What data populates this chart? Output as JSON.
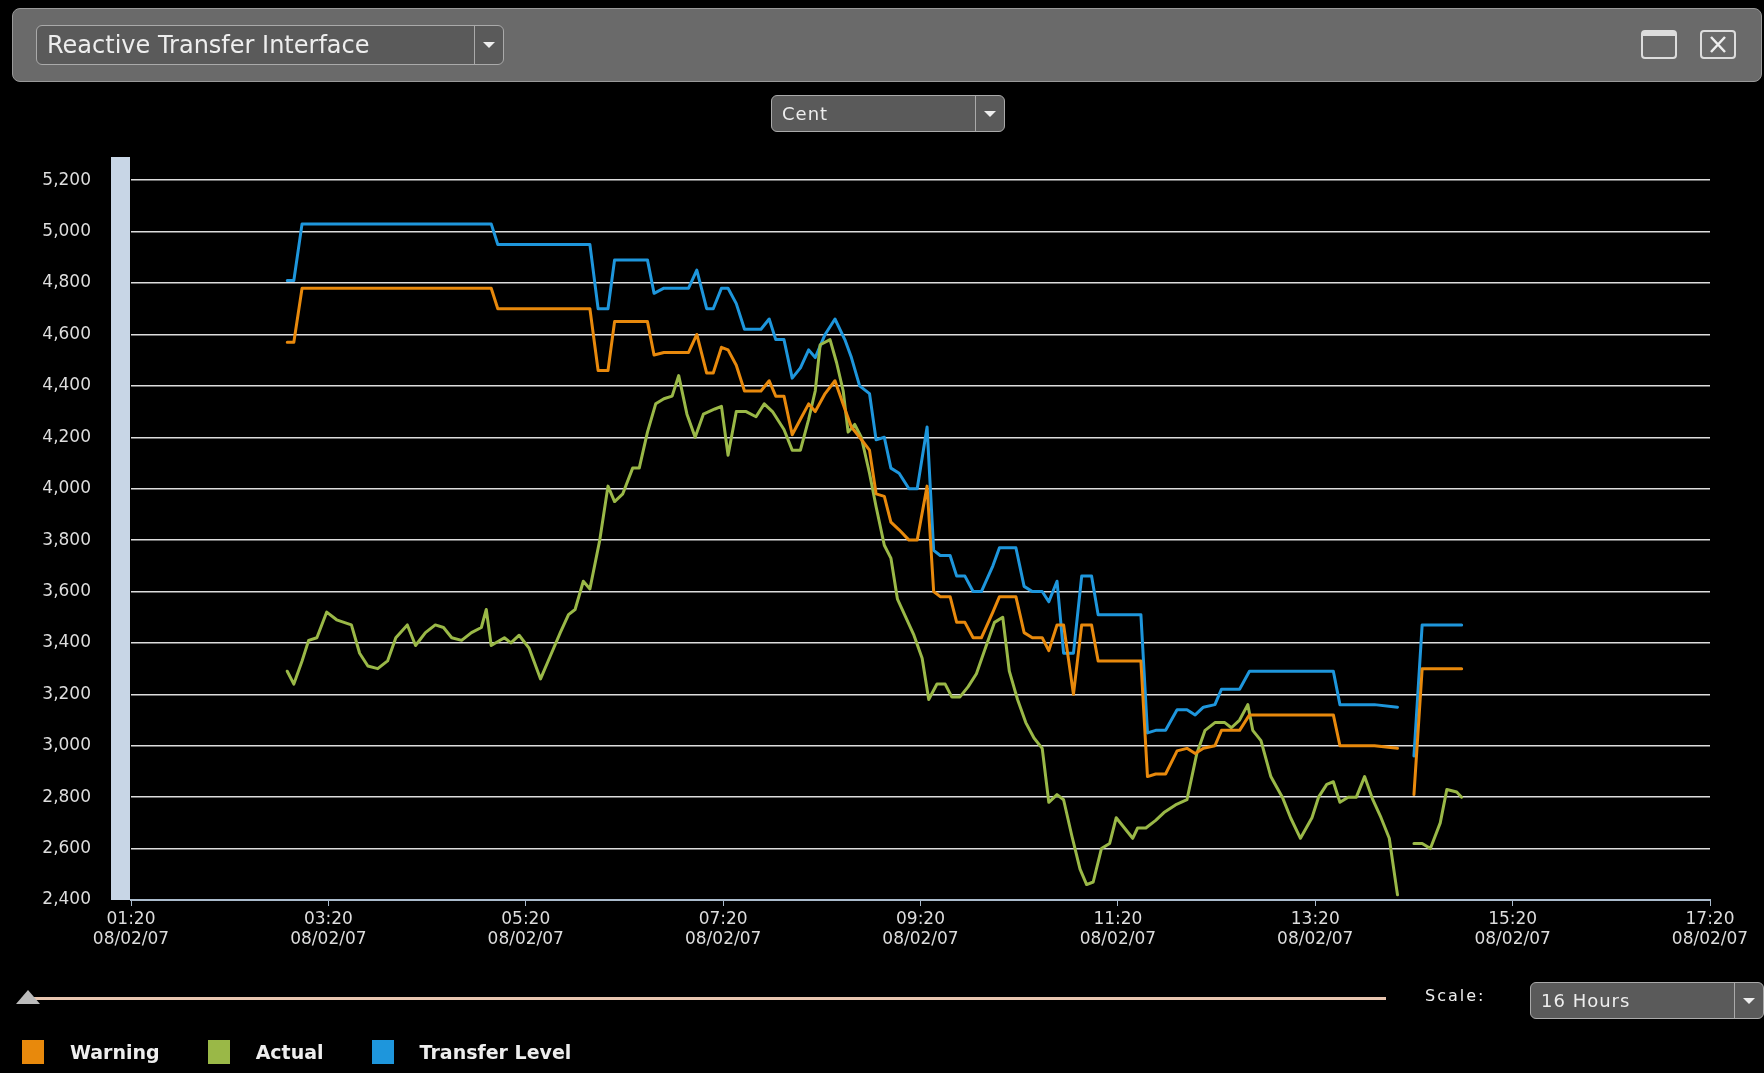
{
  "chart_data": {
    "type": "line",
    "title": "Reactive Transfer Interface",
    "annotations": [
      "Cent",
      "Scale:",
      "16 Hours"
    ],
    "xlim": [
      "--08-02T01:20",
      "--08-02T17:20"
    ],
    "xticks": [
      {
        "value": "--08-02T01:20",
        "label": "01:20 08/02/07"
      },
      {
        "value": "--08-02T03:20",
        "label": "03:20 08/02/07"
      },
      {
        "value": "--08-02T05:20",
        "label": "05:20 08/02/07"
      },
      {
        "value": "--08-02T07:20",
        "label": "07:20 08/02/07"
      },
      {
        "value": "--08-02T09:20",
        "label": "09:20 08/02/07"
      },
      {
        "value": "--08-02T11:20",
        "label": "11:20 08/02/07"
      },
      {
        "value": "--08-02T13:20",
        "label": "13:20 08/02/07"
      },
      {
        "value": "--08-02T15:20",
        "label": "15:20 08/02/07"
      },
      {
        "value": "--08-02T17:20",
        "label": "17:20 08/02/07"
      }
    ],
    "ylim": [
      2400,
      5200
    ],
    "yticks": [
      {
        "value": 2400,
        "label": "2,400"
      },
      {
        "value": 2600,
        "label": "2,600"
      },
      {
        "value": 2800,
        "label": "2,800"
      },
      {
        "value": 3000,
        "label": "3,000"
      },
      {
        "value": 3200,
        "label": "3,200"
      },
      {
        "value": 3400,
        "label": "3,400"
      },
      {
        "value": 3600,
        "label": "3,600"
      },
      {
        "value": 3800,
        "label": "3,800"
      },
      {
        "value": 4000,
        "label": "4,000"
      },
      {
        "value": 4200,
        "label": "4,200"
      },
      {
        "value": 4400,
        "label": "4,400"
      },
      {
        "value": 4600,
        "label": "4,600"
      },
      {
        "value": 4800,
        "label": "4,800"
      },
      {
        "value": 5000,
        "label": "5,000"
      },
      {
        "value": 5200,
        "label": "5,200"
      }
    ],
    "grid": "y",
    "legend": "bottom left",
    "marker": "none",
    "line_style": "solid",
    "x": [
      "--08-02T02:55",
      "--08-02T02:59",
      "--08-02T03:04",
      "--08-02T04:59",
      "--08-02T05:03",
      "--08-02T05:59",
      "--08-02T06:04",
      "--08-02T06:10",
      "--08-02T06:14",
      "--08-02T06:34",
      "--08-02T06:38",
      "--08-02T06:44",
      "--08-02T06:59",
      "--08-02T07:04",
      "--08-02T07:10",
      "--08-02T07:14",
      "--08-02T07:19",
      "--08-02T07:23",
      "--08-02T07:28",
      "--08-02T07:33",
      "--08-02T07:43",
      "--08-02T07:48",
      "--08-02T07:52",
      "--08-02T07:57",
      "--08-02T08:02",
      "--08-02T08:07",
      "--08-02T08:12",
      "--08-02T08:16",
      "--08-02T08:22",
      "--08-02T08:28",
      "--08-02T08:34",
      "--08-02T08:38",
      "--08-02T08:43",
      "--08-02T08:49",
      "--08-02T08:53",
      "--08-02T08:58",
      "--08-02T09:02",
      "--08-02T09:07",
      "--08-02T09:13",
      "--08-02T09:18",
      "--08-02T09:24",
      "--08-02T09:28",
      "--08-02T09:32",
      "--08-02T09:38",
      "--08-02T09:42",
      "--08-02T09:47",
      "--08-02T09:52",
      "--08-02T09:57",
      "--08-02T10:04",
      "--08-02T10:08",
      "--08-02T10:18",
      "--08-02T10:23",
      "--08-02T10:28",
      "--08-02T10:34",
      "--08-02T10:38",
      "--08-02T10:43",
      "--08-02T10:47",
      "--08-02T10:53",
      "--08-02T10:58",
      "--08-02T11:04",
      "--08-02T11:08",
      "--08-02T11:34",
      "--08-02T11:38",
      "--08-02T11:43",
      "--08-02T11:49",
      "--08-02T11:56",
      "--08-02T12:02",
      "--08-02T12:07",
      "--08-02T12:12",
      "--08-02T12:19",
      "--08-02T12:23",
      "--08-02T12:34",
      "--08-02T12:40",
      "--08-02T13:31",
      "--08-02T13:35",
      "--08-02T13:56",
      "--08-02T14:10",
      "--08-02T14:15",
      "--08-02T14:20",
      "--08-02T14:25",
      "--08-02T14:49"
    ],
    "series": [
      {
        "name": "Warning",
        "color": "#e8890c",
        "values": [
          4570,
          4570,
          4780,
          4780,
          4700,
          4700,
          4460,
          4460,
          4650,
          4650,
          4520,
          4530,
          4530,
          4600,
          4450,
          4450,
          4550,
          4540,
          4480,
          4380,
          4380,
          4420,
          4360,
          4360,
          4210,
          4270,
          4330,
          4300,
          4370,
          4420,
          4310,
          4240,
          4200,
          4150,
          3980,
          3970,
          3870,
          3840,
          3800,
          3800,
          4010,
          3600,
          3580,
          3580,
          3480,
          3480,
          3420,
          3420,
          3520,
          3580,
          3580,
          3440,
          3420,
          3420,
          3370,
          3470,
          3470,
          3200,
          3470,
          3470,
          3330,
          3330,
          2880,
          2890,
          2890,
          2980,
          2990,
          2970,
          2990,
          3000,
          3060,
          3060,
          3120,
          3120,
          3000,
          3000,
          2990,
          null,
          2810,
          3300,
          3300
        ]
      },
      {
        "name": "Actual",
        "color": "#9ab847",
        "x": [
          "--08-02T02:55",
          "--08-02T02:59",
          "--08-02T03:04",
          "--08-02T03:08",
          "--08-02T03:13",
          "--08-02T03:19",
          "--08-02T03:25",
          "--08-02T03:34",
          "--08-02T03:39",
          "--08-02T03:44",
          "--08-02T03:50",
          "--08-02T03:56",
          "--08-02T04:01",
          "--08-02T04:08",
          "--08-02T04:13",
          "--08-02T04:19",
          "--08-02T04:25",
          "--08-02T04:30",
          "--08-02T04:35",
          "--08-02T04:41",
          "--08-02T04:47",
          "--08-02T04:53",
          "--08-02T04:56",
          "--08-02T04:59",
          "--08-02T05:07",
          "--08-02T05:11",
          "--08-02T05:16",
          "--08-02T05:22",
          "--08-02T05:29",
          "--08-02T05:35",
          "--08-02T05:41",
          "--08-02T05:46",
          "--08-02T05:50",
          "--08-02T05:55",
          "--08-02T05:59",
          "--08-02T06:05",
          "--08-02T06:10",
          "--08-02T06:14",
          "--08-02T06:19",
          "--08-02T06:25",
          "--08-02T06:29",
          "--08-02T06:34",
          "--08-02T06:39",
          "--08-02T06:44",
          "--08-02T06:49",
          "--08-02T06:53",
          "--08-02T06:58",
          "--08-02T07:03",
          "--08-02T07:08",
          "--08-02T07:15",
          "--08-02T07:19",
          "--08-02T07:23",
          "--08-02T07:28",
          "--08-02T07:34",
          "--08-02T07:40",
          "--08-02T07:45",
          "--08-02T07:50",
          "--08-02T07:57",
          "--08-02T08:02",
          "--08-02T08:07",
          "--08-02T08:12",
          "--08-02T08:16",
          "--08-02T08:19",
          "--08-02T08:25",
          "--08-02T08:29",
          "--08-02T08:33",
          "--08-02T08:36",
          "--08-02T08:40",
          "--08-02T08:44",
          "--08-02T08:49",
          "--08-02T08:53",
          "--08-02T08:58",
          "--08-02T09:02",
          "--08-02T09:06",
          "--08-02T09:11",
          "--08-02T09:16",
          "--08-02T09:21",
          "--08-02T09:25",
          "--08-02T09:30",
          "--08-02T09:35",
          "--08-02T09:39",
          "--08-02T09:44",
          "--08-02T09:49",
          "--08-02T09:54",
          "--08-02T10:00",
          "--08-02T10:05",
          "--08-02T10:10",
          "--08-02T10:14",
          "--08-02T10:19",
          "--08-02T10:24",
          "--08-02T10:29",
          "--08-02T10:34",
          "--08-02T10:38",
          "--08-02T10:43",
          "--08-02T10:47",
          "--08-02T10:52",
          "--08-02T10:57",
          "--08-02T11:01",
          "--08-02T11:05",
          "--08-02T11:10",
          "--08-02T11:15",
          "--08-02T11:19",
          "--08-02T11:24",
          "--08-02T11:29",
          "--08-02T11:32",
          "--08-02T11:37",
          "--08-02T11:43",
          "--08-02T11:48",
          "--08-02T11:55",
          "--08-02T12:02",
          "--08-02T12:08",
          "--08-02T12:13",
          "--08-02T12:19",
          "--08-02T12:25",
          "--08-02T12:29",
          "--08-02T12:34",
          "--08-02T12:39",
          "--08-02T12:42",
          "--08-02T12:47",
          "--08-02T12:53",
          "--08-02T13:00",
          "--08-02T13:05",
          "--08-02T13:11",
          "--08-02T13:18",
          "--08-02T13:22",
          "--08-02T13:27",
          "--08-02T13:31",
          "--08-02T13:35",
          "--08-02T13:40",
          "--08-02T13:45",
          "--08-02T13:50",
          "--08-02T13:55",
          "--08-02T14:00",
          "--08-02T14:05",
          "--08-02T14:10",
          "--08-02T14:15",
          "--08-02T14:20",
          "--08-02T14:25",
          "--08-02T14:30",
          "--08-02T14:36",
          "--08-02T14:40",
          "--08-02T14:46",
          "--08-02T14:49"
        ],
        "values": [
          3290,
          3240,
          3330,
          3410,
          3420,
          3520,
          3490,
          3470,
          3360,
          3310,
          3300,
          3330,
          3420,
          3470,
          3390,
          3440,
          3470,
          3460,
          3420,
          3410,
          3440,
          3460,
          3530,
          3390,
          3420,
          3400,
          3430,
          3380,
          3260,
          3350,
          3440,
          3510,
          3530,
          3640,
          3610,
          3800,
          4010,
          3950,
          3980,
          4080,
          4080,
          4220,
          4330,
          4350,
          4360,
          4440,
          4290,
          4200,
          4290,
          4310,
          4320,
          4130,
          4300,
          4300,
          4280,
          4330,
          4300,
          4230,
          4150,
          4150,
          4270,
          4380,
          4560,
          4580,
          4490,
          4380,
          4220,
          4250,
          4200,
          4060,
          3930,
          3780,
          3730,
          3570,
          3500,
          3430,
          3340,
          3180,
          3240,
          3240,
          3190,
          3190,
          3230,
          3280,
          3390,
          3480,
          3500,
          3290,
          3180,
          3090,
          3030,
          2990,
          2780,
          2810,
          2790,
          2650,
          2520,
          2460,
          2470,
          2600,
          2620,
          2720,
          2680,
          2640,
          2680,
          2680,
          2710,
          2740,
          2770,
          2790,
          2970,
          3060,
          3090,
          3090,
          3070,
          3100,
          3160,
          3060,
          3020,
          2880,
          2800,
          2720,
          2640,
          2720,
          2800,
          2850,
          2860,
          2780,
          2800,
          2800,
          2880,
          2790,
          2720,
          2640,
          2420,
          null,
          2620,
          2620,
          2600,
          2700,
          2830,
          2820,
          2800
        ]
      },
      {
        "name": "Transfer Level",
        "color": "#1e96dc",
        "values": [
          4810,
          4810,
          5030,
          5030,
          4950,
          4950,
          4700,
          4700,
          4890,
          4890,
          4760,
          4780,
          4780,
          4850,
          4700,
          4700,
          4780,
          4780,
          4720,
          4620,
          4620,
          4660,
          4580,
          4580,
          4430,
          4470,
          4540,
          4510,
          4600,
          4660,
          4580,
          4510,
          4400,
          4370,
          4190,
          4200,
          4080,
          4060,
          4000,
          4000,
          4240,
          3760,
          3740,
          3740,
          3660,
          3660,
          3600,
          3600,
          3700,
          3770,
          3770,
          3620,
          3600,
          3600,
          3560,
          3640,
          3360,
          3360,
          3660,
          3660,
          3510,
          3510,
          3050,
          3060,
          3060,
          3140,
          3140,
          3120,
          3150,
          3160,
          3220,
          3220,
          3290,
          3290,
          3160,
          3160,
          3150,
          null,
          2960,
          3470,
          3470
        ]
      }
    ]
  }
}
